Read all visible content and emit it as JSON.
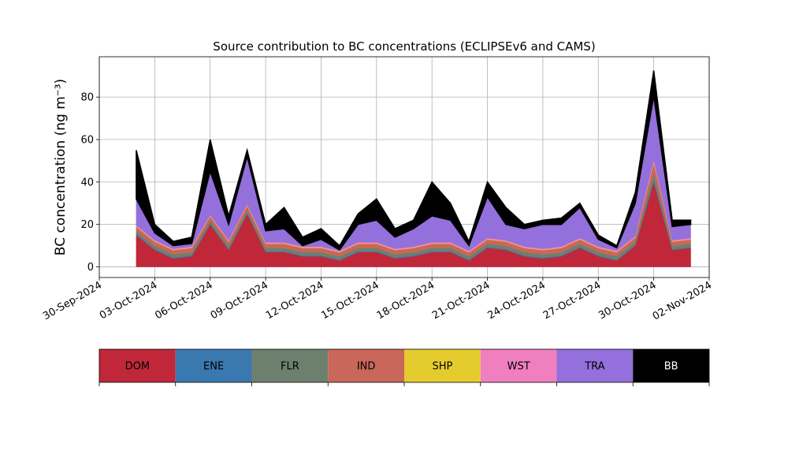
{
  "chart_data": {
    "type": "stacked_area",
    "title": "Source contribution to BC concentrations (ECLIPSEv6 and CAMS)",
    "y_label": "BC concentration (ng m⁻³)",
    "x": [
      "2024-10-02",
      "2024-10-03",
      "2024-10-04",
      "2024-10-05",
      "2024-10-06",
      "2024-10-07",
      "2024-10-08",
      "2024-10-09",
      "2024-10-10",
      "2024-10-11",
      "2024-10-12",
      "2024-10-13",
      "2024-10-14",
      "2024-10-15",
      "2024-10-16",
      "2024-10-17",
      "2024-10-18",
      "2024-10-19",
      "2024-10-20",
      "2024-10-21",
      "2024-10-22",
      "2024-10-23",
      "2024-10-24",
      "2024-10-25",
      "2024-10-26",
      "2024-10-27",
      "2024-10-28",
      "2024-10-29",
      "2024-10-30",
      "2024-10-31",
      "2024-11-01"
    ],
    "series": [
      {
        "name": "DOM",
        "color": "#c0283a",
        "values": [
          15,
          8,
          4,
          5,
          20,
          8,
          25,
          7,
          7,
          5,
          5,
          3,
          7,
          7,
          4,
          5,
          7,
          7,
          3,
          9,
          8,
          5,
          4,
          5,
          9,
          5,
          3,
          10,
          40,
          8,
          9
        ]
      },
      {
        "name": "ENE",
        "color": "#3a78b0",
        "values": [
          0.4,
          0.4,
          0.4,
          0.4,
          0.4,
          0.4,
          0.4,
          0.4,
          0.4,
          0.4,
          0.4,
          0.4,
          0.4,
          0.4,
          0.4,
          0.4,
          0.4,
          0.4,
          0.4,
          0.4,
          0.4,
          0.4,
          0.4,
          0.4,
          0.4,
          0.4,
          0.4,
          0.4,
          1,
          0.4,
          0.4
        ]
      },
      {
        "name": "FLR",
        "color": "#6d806e",
        "values": [
          1.5,
          1.5,
          1.5,
          1.5,
          1.5,
          1.5,
          1.5,
          1.5,
          1.5,
          1.5,
          1.5,
          1.5,
          1.5,
          1.5,
          1.5,
          1.5,
          1.5,
          1.5,
          1.5,
          1.5,
          1.5,
          1.5,
          1.5,
          1.5,
          1.5,
          1.5,
          1.5,
          1.5,
          3,
          1.5,
          1.5
        ]
      },
      {
        "name": "IND",
        "color": "#c9675a",
        "values": [
          2,
          2,
          2,
          2,
          2,
          2,
          2,
          2,
          2,
          2,
          2,
          2,
          2,
          2,
          2,
          2,
          2,
          2,
          2,
          2,
          2,
          2,
          2,
          2,
          2,
          2,
          2,
          2,
          5,
          2,
          2
        ]
      },
      {
        "name": "SHP",
        "color": "#e5cc2e",
        "values": [
          0.2,
          0.2,
          0.2,
          0.2,
          0.2,
          0.2,
          0.2,
          0.2,
          0.2,
          0.2,
          0.2,
          0.2,
          0.2,
          0.2,
          0.2,
          0.2,
          0.2,
          0.2,
          0.2,
          0.2,
          0.2,
          0.2,
          0.2,
          0.2,
          0.2,
          0.2,
          0.2,
          0.2,
          0.5,
          0.2,
          0.2
        ]
      },
      {
        "name": "WST",
        "color": "#f07fbf",
        "values": [
          0.5,
          0.5,
          0.5,
          0.5,
          0.5,
          0.5,
          0.5,
          0.5,
          0.5,
          0.5,
          0.5,
          0.5,
          0.5,
          0.5,
          0.5,
          0.5,
          0.5,
          0.5,
          0.5,
          0.5,
          0.5,
          0.5,
          0.5,
          0.5,
          0.5,
          0.5,
          0.5,
          0.5,
          1,
          0.5,
          0.5
        ]
      },
      {
        "name": "TRA",
        "color": "#9370db",
        "values": [
          12.4,
          3.4,
          1.4,
          1.4,
          20.4,
          7.4,
          22.4,
          5.4,
          6.4,
          0.4,
          3.4,
          0.4,
          8.4,
          10.4,
          5.4,
          8.4,
          12.4,
          10.4,
          2.4,
          19.4,
          7.4,
          8.4,
          11.4,
          10.4,
          14.4,
          3.4,
          1.4,
          15.4,
          30,
          6.4,
          6.4
        ]
      },
      {
        "name": "BB",
        "color": "#000000",
        "values": [
          23,
          4,
          2,
          3,
          15,
          4,
          3,
          3,
          10,
          4,
          5,
          2,
          5,
          10,
          4,
          4,
          16,
          8,
          2,
          7,
          8,
          2,
          2,
          3,
          2,
          2,
          1,
          5,
          12,
          3,
          2
        ]
      }
    ],
    "xlim": [
      "2024-09-30",
      "2024-11-02"
    ],
    "xticks": [
      {
        "value": "2024-09-30",
        "label": "30-Sep-2024"
      },
      {
        "value": "2024-10-03",
        "label": "03-Oct-2024"
      },
      {
        "value": "2024-10-06",
        "label": "06-Oct-2024"
      },
      {
        "value": "2024-10-09",
        "label": "09-Oct-2024"
      },
      {
        "value": "2024-10-12",
        "label": "12-Oct-2024"
      },
      {
        "value": "2024-10-15",
        "label": "15-Oct-2024"
      },
      {
        "value": "2024-10-18",
        "label": "18-Oct-2024"
      },
      {
        "value": "2024-10-21",
        "label": "21-Oct-2024"
      },
      {
        "value": "2024-10-24",
        "label": "24-Oct-2024"
      },
      {
        "value": "2024-10-27",
        "label": "27-Oct-2024"
      },
      {
        "value": "2024-10-30",
        "label": "30-Oct-2024"
      },
      {
        "value": "2024-11-02",
        "label": "02-Nov-2024"
      }
    ],
    "ylim": [
      -5,
      99
    ],
    "yticks": [
      0,
      20,
      40,
      60,
      80
    ],
    "grid": true
  }
}
